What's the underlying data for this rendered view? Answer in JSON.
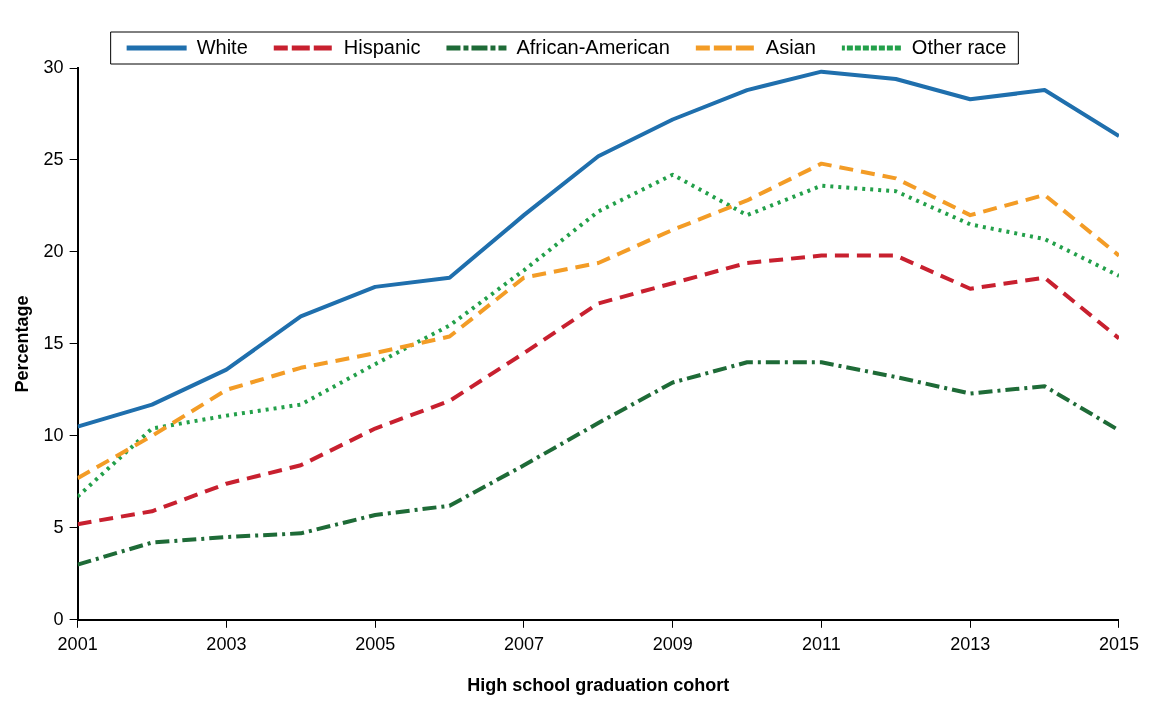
{
  "chart_data": {
    "type": "line",
    "xlabel": "High school graduation cohort",
    "ylabel": "Percentage",
    "x": [
      2001,
      2002,
      2003,
      2004,
      2005,
      2006,
      2007,
      2008,
      2009,
      2010,
      2011,
      2012,
      2013,
      2014,
      2015
    ],
    "xlim": [
      2001,
      2015
    ],
    "xticks": [
      2001,
      2003,
      2005,
      2007,
      2009,
      2011,
      2013,
      2015
    ],
    "ylim": [
      0,
      30
    ],
    "yticks": [
      0,
      5,
      10,
      15,
      20,
      25,
      30
    ],
    "grid": false,
    "legend": "top",
    "marker": "none",
    "series": [
      {
        "name": "White",
        "color": "#1f6fad",
        "line_style": "solid",
        "values": [
          10.5,
          11.7,
          13.6,
          16.5,
          18.1,
          18.6,
          22.0,
          25.2,
          27.2,
          28.8,
          29.8,
          29.4,
          28.3,
          28.8,
          26.3
        ]
      },
      {
        "name": "Hispanic",
        "color": "#c8202f",
        "line_style": "dashed",
        "values": [
          5.2,
          5.9,
          7.4,
          8.4,
          10.4,
          11.9,
          14.5,
          17.2,
          18.3,
          19.4,
          19.8,
          19.8,
          18.0,
          18.6,
          15.3
        ]
      },
      {
        "name": "African-American",
        "color": "#1e6b37",
        "line_style": "dashdot",
        "values": [
          3.0,
          4.2,
          4.5,
          4.7,
          5.7,
          6.2,
          8.4,
          10.7,
          12.9,
          14.0,
          14.0,
          13.2,
          12.3,
          12.7,
          10.3
        ]
      },
      {
        "name": "Asian",
        "color": "#f39c26",
        "line_style": "dashed",
        "values": [
          7.7,
          10.0,
          12.5,
          13.7,
          14.5,
          15.4,
          18.6,
          19.4,
          21.2,
          22.8,
          24.8,
          24.0,
          22.0,
          23.1,
          19.8
        ]
      },
      {
        "name": "Other race",
        "color": "#23a04a",
        "line_style": "dotted",
        "values": [
          6.7,
          10.4,
          11.1,
          11.7,
          13.9,
          16.0,
          19.0,
          22.2,
          24.2,
          22.0,
          23.6,
          23.3,
          21.5,
          20.7,
          18.7
        ]
      }
    ]
  }
}
